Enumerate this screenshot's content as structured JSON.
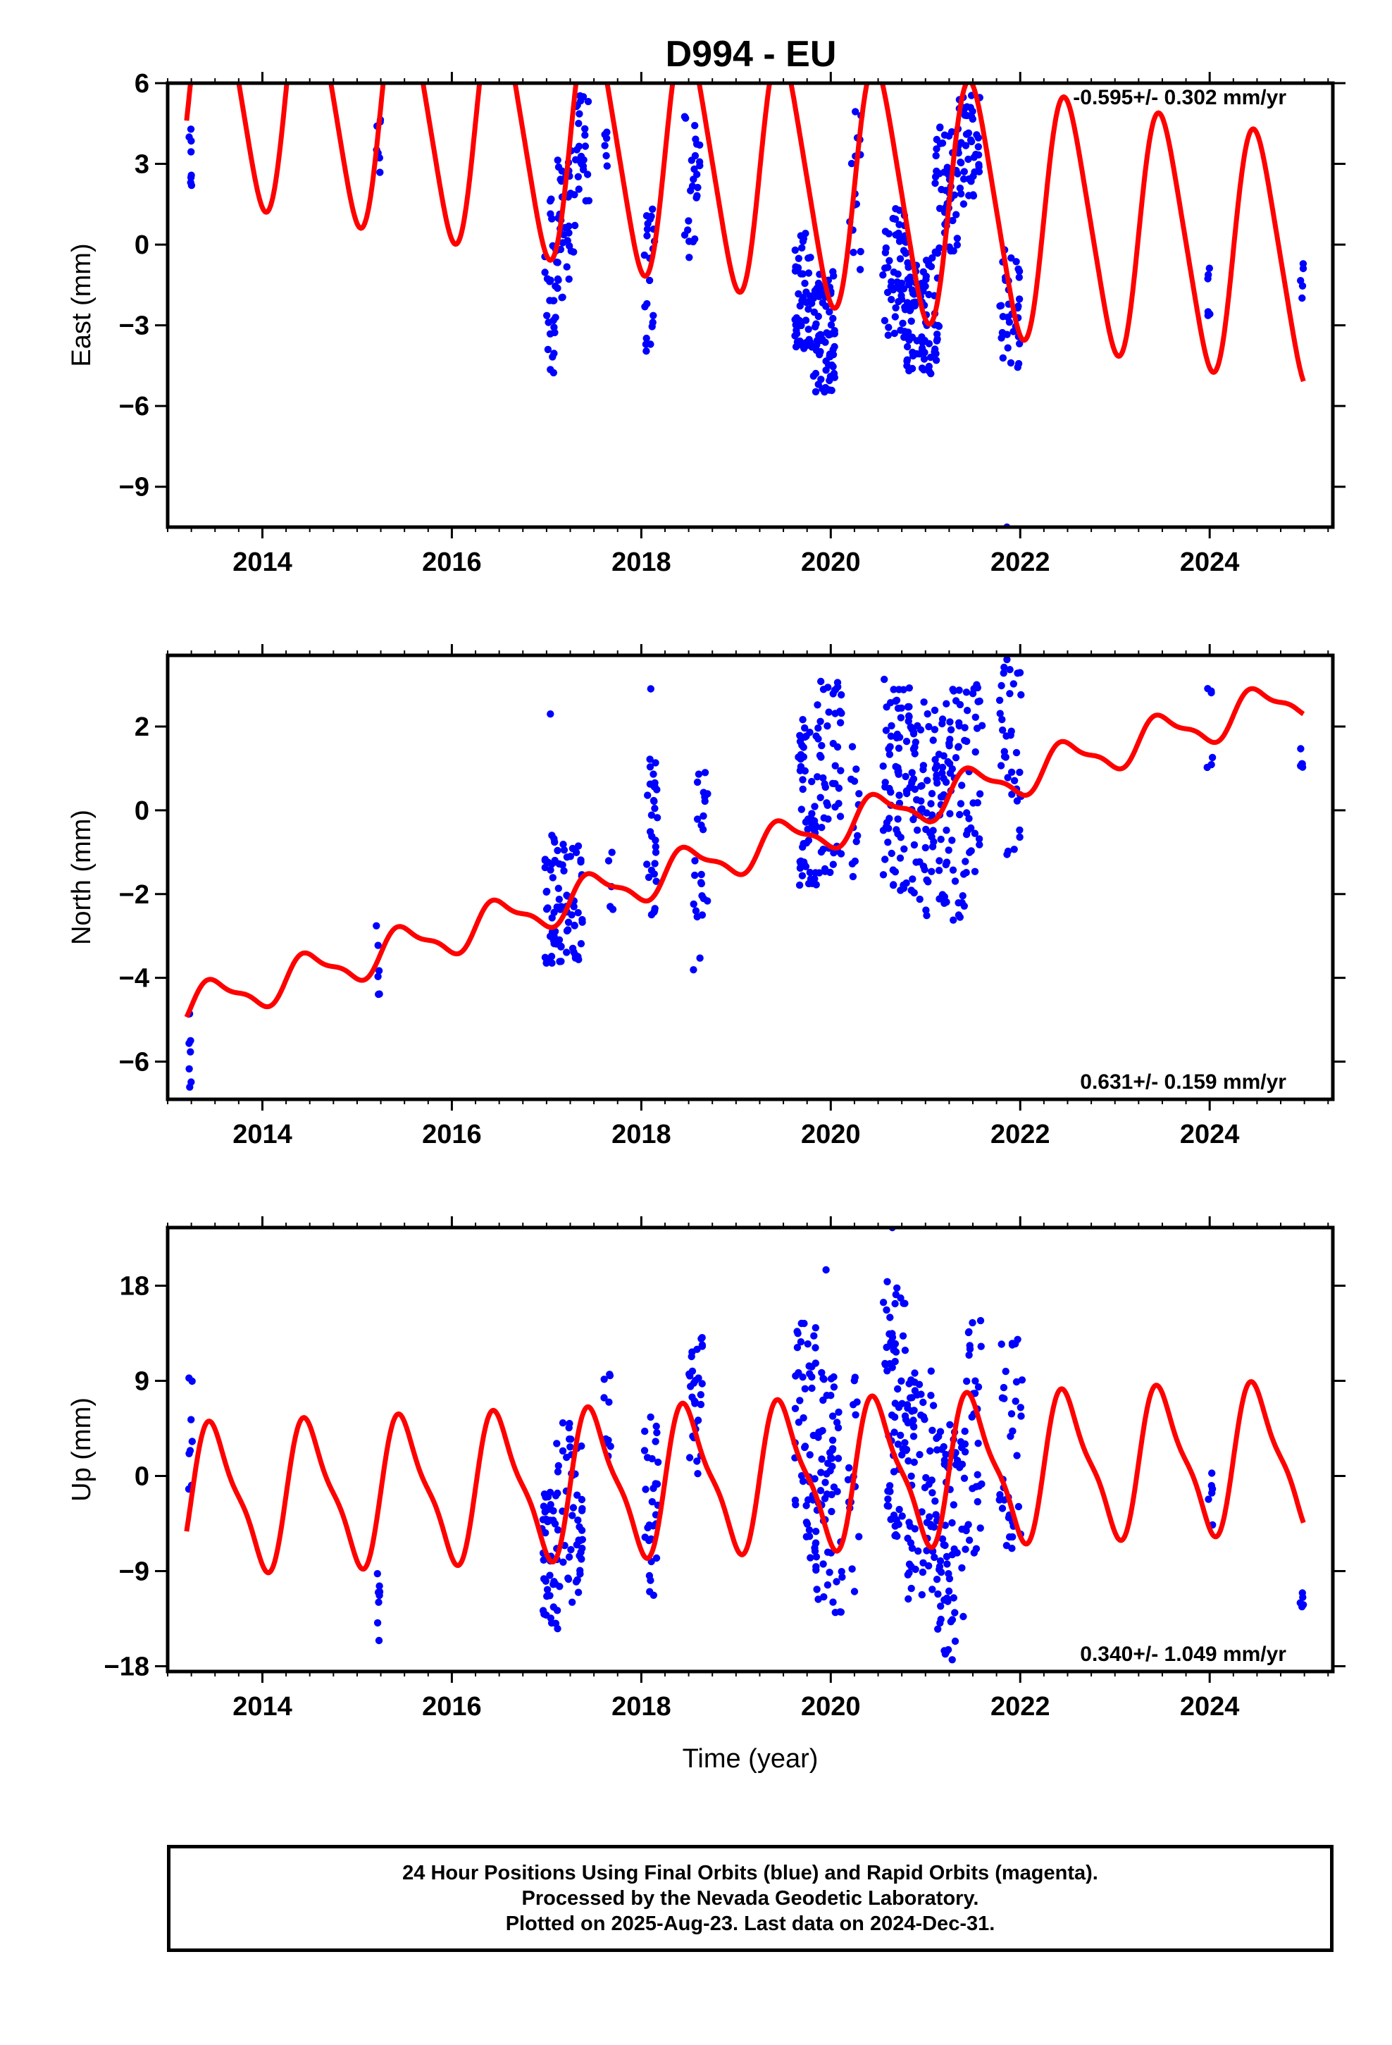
{
  "title": "D994 - EU",
  "footer": {
    "line1": "24 Hour Positions Using Final Orbits (blue) and Rapid Orbits (magenta).",
    "line2": "Processed by the Nevada Geodetic Laboratory.",
    "line3": "Plotted on 2025-Aug-23. Last data on 2024-Dec-31."
  },
  "colors": {
    "observations": "#0000ff",
    "model": "#ff0000",
    "frame": "#000000"
  },
  "chart_data": [
    {
      "type": "scatter",
      "name": "east",
      "ylabel": "East (mm)",
      "rate_label": "-0.595+/- 0.302 mm/yr",
      "xlim": [
        2013.0,
        2025.3
      ],
      "ylim": [
        -10.5,
        6.0
      ],
      "yticks": [
        6,
        3,
        0,
        -3,
        -6,
        -9
      ],
      "ytick_labels": [
        "6",
        "3",
        "0",
        "−3",
        "−6",
        "−9"
      ],
      "xticks": [
        2014,
        2016,
        2018,
        2020,
        2022,
        2024
      ],
      "xtick_labels": [
        "2014",
        "2016",
        "2018",
        "2020",
        "2022",
        "2024"
      ],
      "model": {
        "trend_per_yr": -0.595,
        "amp_annual": 4.5,
        "amp_semiannual": 0.6,
        "offset": 2.9
      },
      "clusters": [
        {
          "x": [
            2013.22,
            2013.26
          ],
          "y": [
            1.7,
            4.3
          ],
          "n": 8
        },
        {
          "x": [
            2015.2,
            2015.25
          ],
          "y": [
            2.2,
            5.0
          ],
          "n": 8
        },
        {
          "x": [
            2016.98,
            2017.12
          ],
          "y": [
            -4.8,
            2.0
          ],
          "n": 30
        },
        {
          "x": [
            2017.1,
            2017.3
          ],
          "y": [
            -2.0,
            3.5
          ],
          "n": 40
        },
        {
          "x": [
            2017.3,
            2017.45
          ],
          "y": [
            1.5,
            5.6
          ],
          "n": 25
        },
        {
          "x": [
            2017.6,
            2017.65
          ],
          "y": [
            1.8,
            4.2
          ],
          "n": 6
        },
        {
          "x": [
            2018.03,
            2018.15
          ],
          "y": [
            -4.2,
            1.6
          ],
          "n": 22
        },
        {
          "x": [
            2018.45,
            2018.62
          ],
          "y": [
            -0.5,
            4.8
          ],
          "n": 25
        },
        {
          "x": [
            2019.62,
            2019.8
          ],
          "y": [
            -4.0,
            0.5
          ],
          "n": 45
        },
        {
          "x": [
            2019.8,
            2020.05
          ],
          "y": [
            -5.5,
            -1.0
          ],
          "n": 75
        },
        {
          "x": [
            2020.2,
            2020.32
          ],
          "y": [
            -1.0,
            5.0
          ],
          "n": 15
        },
        {
          "x": [
            2020.55,
            2020.8
          ],
          "y": [
            -3.5,
            1.5
          ],
          "n": 55
        },
        {
          "x": [
            2020.8,
            2021.15
          ],
          "y": [
            -4.8,
            -0.3
          ],
          "n": 85
        },
        {
          "x": [
            2021.1,
            2021.35
          ],
          "y": [
            -0.5,
            4.5
          ],
          "n": 55
        },
        {
          "x": [
            2021.35,
            2021.58
          ],
          "y": [
            1.5,
            5.7
          ],
          "n": 45
        },
        {
          "x": [
            2021.78,
            2022.0
          ],
          "y": [
            -4.8,
            0.0
          ],
          "n": 35
        },
        {
          "x": [
            2023.98,
            2024.02
          ],
          "y": [
            -2.8,
            -0.3
          ],
          "n": 6
        },
        {
          "x": [
            2024.95,
            2024.99
          ],
          "y": [
            -2.0,
            -0.4
          ],
          "n": 5
        }
      ],
      "extra_points": [
        [
          2021.86,
          -10.5
        ]
      ]
    },
    {
      "type": "scatter",
      "name": "north",
      "ylabel": "North (mm)",
      "rate_label": "0.631+/- 0.159 mm/yr",
      "xlim": [
        2013.0,
        2025.3
      ],
      "ylim": [
        -6.9,
        3.7
      ],
      "yticks": [
        2,
        0,
        -2,
        -4,
        -6
      ],
      "ytick_labels": [
        "2",
        "0",
        "−2",
        "−4",
        "−6"
      ],
      "xticks": [
        2014,
        2016,
        2018,
        2020,
        2022,
        2024
      ],
      "xtick_labels": [
        "2014",
        "2016",
        "2018",
        "2020",
        "2022",
        "2024"
      ],
      "model": {
        "trend_per_yr": 0.631,
        "amp_annual": 0.45,
        "amp_semiannual": 0.15,
        "offset": -1.05
      },
      "clusters": [
        {
          "x": [
            2013.22,
            2013.26
          ],
          "y": [
            -6.7,
            -4.7
          ],
          "n": 7
        },
        {
          "x": [
            2015.2,
            2015.24
          ],
          "y": [
            -4.4,
            -2.6
          ],
          "n": 6
        },
        {
          "x": [
            2016.98,
            2017.1
          ],
          "y": [
            -3.7,
            -0.5
          ],
          "n": 30
        },
        {
          "x": [
            2017.1,
            2017.38
          ],
          "y": [
            -3.7,
            -0.8
          ],
          "n": 50
        },
        {
          "x": [
            2017.65,
            2017.7
          ],
          "y": [
            -2.8,
            -0.2
          ],
          "n": 5
        },
        {
          "x": [
            2018.05,
            2018.17
          ],
          "y": [
            -2.5,
            1.6
          ],
          "n": 30
        },
        {
          "x": [
            2018.55,
            2018.7
          ],
          "y": [
            -3.9,
            1.4
          ],
          "n": 25
        },
        {
          "x": [
            2019.65,
            2019.85
          ],
          "y": [
            -1.8,
            2.3
          ],
          "n": 55
        },
        {
          "x": [
            2019.85,
            2020.12
          ],
          "y": [
            -1.5,
            3.1
          ],
          "n": 55
        },
        {
          "x": [
            2020.2,
            2020.3
          ],
          "y": [
            -1.7,
            1.7
          ],
          "n": 12
        },
        {
          "x": [
            2020.55,
            2020.85
          ],
          "y": [
            -2.0,
            3.2
          ],
          "n": 70
        },
        {
          "x": [
            2020.85,
            2021.15
          ],
          "y": [
            -2.6,
            2.6
          ],
          "n": 70
        },
        {
          "x": [
            2021.15,
            2021.42
          ],
          "y": [
            -2.7,
            2.9
          ],
          "n": 60
        },
        {
          "x": [
            2021.42,
            2021.6
          ],
          "y": [
            -1.5,
            3.0
          ],
          "n": 30
        },
        {
          "x": [
            2021.78,
            2022.02
          ],
          "y": [
            -1.2,
            3.6
          ],
          "n": 35
        },
        {
          "x": [
            2023.97,
            2024.03
          ],
          "y": [
            1.0,
            3.4
          ],
          "n": 6
        },
        {
          "x": [
            2024.95,
            2024.99
          ],
          "y": [
            1.0,
            1.7
          ],
          "n": 5
        }
      ],
      "extra_points": [
        [
          2017.04,
          2.3
        ],
        [
          2018.1,
          2.9
        ],
        [
          2021.86,
          3.6
        ]
      ]
    },
    {
      "type": "scatter",
      "name": "up",
      "ylabel": "Up (mm)",
      "rate_label": "0.340+/- 1.049 mm/yr",
      "xlim": [
        2013.0,
        2025.3
      ],
      "ylim": [
        -18.5,
        23.5
      ],
      "yticks": [
        18,
        9,
        0,
        -9,
        -18
      ],
      "ytick_labels": [
        "18",
        "9",
        "0",
        "−9",
        "−18"
      ],
      "xticks": [
        2014,
        2016,
        2018,
        2020,
        2022,
        2024
      ],
      "xtick_labels": [
        "2014",
        "2016",
        "2018",
        "2020",
        "2022",
        "2024"
      ],
      "model": {
        "trend_per_yr": 0.34,
        "amp_annual": 6.5,
        "amp_semiannual": 1.8,
        "offset": -0.2
      },
      "clusters": [
        {
          "x": [
            2013.22,
            2013.26
          ],
          "y": [
            -2.0,
            9.5
          ],
          "n": 8
        },
        {
          "x": [
            2015.2,
            2015.24
          ],
          "y": [
            -16.5,
            -9.0
          ],
          "n": 8
        },
        {
          "x": [
            2016.95,
            2017.12
          ],
          "y": [
            -14.5,
            -1.5
          ],
          "n": 45
        },
        {
          "x": [
            2017.1,
            2017.38
          ],
          "y": [
            -12.0,
            5.5
          ],
          "n": 50
        },
        {
          "x": [
            2017.6,
            2017.68
          ],
          "y": [
            1.0,
            10.5
          ],
          "n": 10
        },
        {
          "x": [
            2018.03,
            2018.18
          ],
          "y": [
            -13.0,
            6.0
          ],
          "n": 30
        },
        {
          "x": [
            2018.5,
            2018.65
          ],
          "y": [
            0.0,
            13.5
          ],
          "n": 30
        },
        {
          "x": [
            2019.62,
            2019.85
          ],
          "y": [
            -9.0,
            15.5
          ],
          "n": 55
        },
        {
          "x": [
            2019.85,
            2020.12
          ],
          "y": [
            -13.0,
            10.0
          ],
          "n": 60
        },
        {
          "x": [
            2020.18,
            2020.3
          ],
          "y": [
            -11.0,
            9.5
          ],
          "n": 15
        },
        {
          "x": [
            2020.55,
            2020.8
          ],
          "y": [
            -6.0,
            18.5
          ],
          "n": 65
        },
        {
          "x": [
            2020.8,
            2021.1
          ],
          "y": [
            -12.0,
            10.0
          ],
          "n": 70
        },
        {
          "x": [
            2021.1,
            2021.4
          ],
          "y": [
            -17.5,
            5.0
          ],
          "n": 70
        },
        {
          "x": [
            2021.4,
            2021.6
          ],
          "y": [
            -8.0,
            15.5
          ],
          "n": 35
        },
        {
          "x": [
            2021.78,
            2022.02
          ],
          "y": [
            -8.0,
            13.0
          ],
          "n": 35
        },
        {
          "x": [
            2023.97,
            2024.03
          ],
          "y": [
            -5.0,
            1.5
          ],
          "n": 6
        },
        {
          "x": [
            2024.95,
            2024.99
          ],
          "y": [
            -13.5,
            -11.0
          ],
          "n": 5
        }
      ],
      "extra_points": [
        [
          2020.65,
          23.5
        ],
        [
          2019.95,
          19.5
        ]
      ]
    }
  ]
}
